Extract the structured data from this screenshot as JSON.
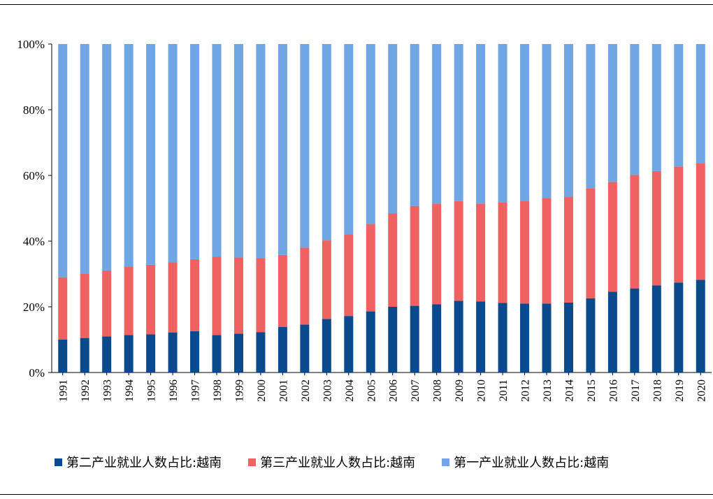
{
  "chart_data": {
    "type": "bar",
    "stacked": true,
    "categories": [
      "1991",
      "1992",
      "1993",
      "1994",
      "1995",
      "1996",
      "1997",
      "1998",
      "1999",
      "2000",
      "2001",
      "2002",
      "2003",
      "2004",
      "2005",
      "2006",
      "2007",
      "2008",
      "2009",
      "2010",
      "2011",
      "2012",
      "2013",
      "2014",
      "2015",
      "2016",
      "2017",
      "2018",
      "2019",
      "2020"
    ],
    "series": [
      {
        "name": "第二产业就业人数占比:越南",
        "color": "#0a4a8c",
        "values": [
          10.0,
          10.5,
          11.0,
          11.4,
          11.6,
          12.2,
          12.6,
          11.4,
          11.8,
          12.3,
          13.9,
          14.6,
          16.3,
          17.2,
          18.6,
          20.0,
          20.3,
          20.8,
          21.8,
          21.6,
          21.2,
          21.0,
          21.0,
          21.3,
          22.6,
          24.6,
          25.6,
          26.5,
          27.4,
          28.2
        ]
      },
      {
        "name": "第三产业就业人数占比:越南",
        "color": "#f06262",
        "values": [
          19.0,
          19.5,
          20.1,
          20.9,
          21.2,
          21.3,
          21.9,
          23.9,
          23.2,
          22.5,
          21.9,
          23.4,
          23.9,
          24.9,
          26.6,
          28.4,
          30.4,
          30.6,
          30.4,
          29.8,
          30.5,
          31.3,
          32.1,
          32.2,
          33.5,
          33.4,
          34.5,
          34.8,
          35.3,
          35.6
        ]
      },
      {
        "name": "第一产业就业人数占比:越南",
        "color": "#6fa6e3",
        "values": [
          71.0,
          70.0,
          68.9,
          67.7,
          67.2,
          66.5,
          65.5,
          64.7,
          65.0,
          65.2,
          64.2,
          62.0,
          59.8,
          57.9,
          54.8,
          51.6,
          49.3,
          48.6,
          47.8,
          48.6,
          48.3,
          47.7,
          46.9,
          46.5,
          43.9,
          42.0,
          39.9,
          38.7,
          37.3,
          36.2
        ]
      }
    ],
    "yticks": [
      "0%",
      "20%",
      "40%",
      "60%",
      "80%",
      "100%"
    ],
    "ylim": [
      0,
      100
    ],
    "title": "",
    "xlabel": "",
    "ylabel": "",
    "legend_position": "bottom"
  }
}
